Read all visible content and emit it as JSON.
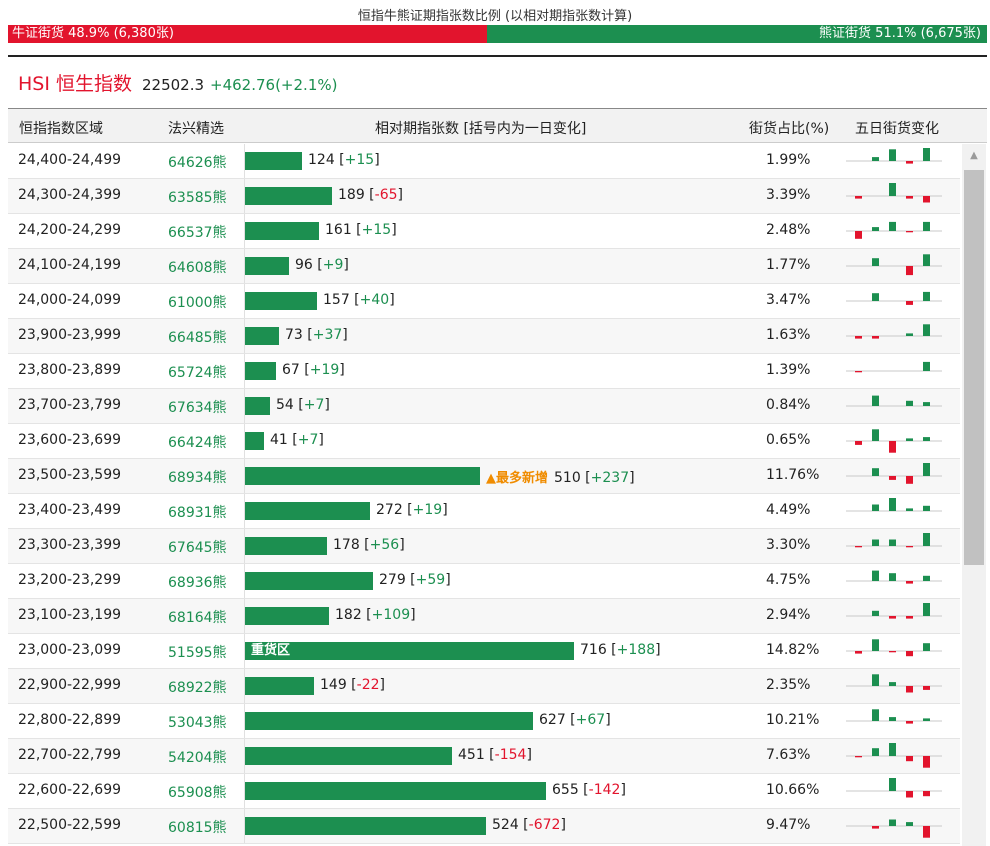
{
  "ratio": {
    "title": "恒指牛熊证期指张数比例 (以相对期指张数计算)",
    "bull_label": "牛证街货 48.9% (6,380张)",
    "bear_label": "熊证街货 51.1% (6,675张)",
    "bull_pct": 48.9,
    "bear_pct": 51.1,
    "bull_color": "#e2142d",
    "bear_color": "#1c8f50"
  },
  "index": {
    "name": "HSI 恒生指数",
    "value": "22502.3",
    "change": "+462.76(+2.1%)"
  },
  "headers": {
    "range": "恒指指数区域",
    "code": "法兴精选",
    "contracts": "相对期指张数 [括号内为一日变化]",
    "share": "街货占比(%)",
    "five_day": "五日街货变化"
  },
  "rows": [
    {
      "range": "24,400-24,499",
      "code": "64626熊",
      "contracts": 124,
      "change": "+15",
      "pct": "1.99%",
      "five": [
        0,
        3,
        9,
        -2,
        10
      ]
    },
    {
      "range": "24,300-24,399",
      "code": "63585熊",
      "contracts": 189,
      "change": "-65",
      "pct": "3.39%",
      "five": [
        -2,
        0,
        10,
        -2,
        -5
      ]
    },
    {
      "range": "24,200-24,299",
      "code": "66537熊",
      "contracts": 161,
      "change": "+15",
      "pct": "2.48%",
      "five": [
        -6,
        3,
        7,
        -1,
        7
      ]
    },
    {
      "range": "24,100-24,199",
      "code": "64608熊",
      "contracts": 96,
      "change": "+9",
      "pct": "1.77%",
      "five": [
        0,
        6,
        0,
        -7,
        9
      ]
    },
    {
      "range": "24,000-24,099",
      "code": "61000熊",
      "contracts": 157,
      "change": "+40",
      "pct": "3.47%",
      "five": [
        0,
        6,
        0,
        -3,
        7
      ]
    },
    {
      "range": "23,900-23,999",
      "code": "66485熊",
      "contracts": 73,
      "change": "+37",
      "pct": "1.63%",
      "five": [
        -2,
        -2,
        0,
        2,
        9
      ]
    },
    {
      "range": "23,800-23,899",
      "code": "65724熊",
      "contracts": 67,
      "change": "+19",
      "pct": "1.39%",
      "five": [
        -1,
        0,
        0,
        0,
        7
      ]
    },
    {
      "range": "23,700-23,799",
      "code": "67634熊",
      "contracts": 54,
      "change": "+7",
      "pct": "0.84%",
      "five": [
        0,
        8,
        0,
        4,
        3
      ]
    },
    {
      "range": "23,600-23,699",
      "code": "66424熊",
      "contracts": 41,
      "change": "+7",
      "pct": "0.65%",
      "five": [
        -3,
        9,
        -9,
        2,
        3
      ]
    },
    {
      "range": "23,500-23,599",
      "code": "68934熊",
      "contracts": 510,
      "change": "+237",
      "pct": "11.76%",
      "five": [
        0,
        6,
        -3,
        -6,
        10
      ],
      "note": "▲最多新增"
    },
    {
      "range": "23,400-23,499",
      "code": "68931熊",
      "contracts": 272,
      "change": "+19",
      "pct": "4.49%",
      "five": [
        0,
        5,
        10,
        2,
        4
      ]
    },
    {
      "range": "23,300-23,399",
      "code": "67645熊",
      "contracts": 178,
      "change": "+56",
      "pct": "3.30%",
      "five": [
        -1,
        5,
        5,
        -1,
        10
      ]
    },
    {
      "range": "23,200-23,299",
      "code": "68936熊",
      "contracts": 279,
      "change": "+59",
      "pct": "4.75%",
      "five": [
        0,
        8,
        6,
        -2,
        4
      ]
    },
    {
      "range": "23,100-23,199",
      "code": "68164熊",
      "contracts": 182,
      "change": "+109",
      "pct": "2.94%",
      "five": [
        0,
        4,
        -2,
        -2,
        10
      ]
    },
    {
      "range": "23,000-23,099",
      "code": "51595熊",
      "contracts": 716,
      "change": "+188",
      "pct": "14.82%",
      "five": [
        -2,
        9,
        -1,
        -4,
        6
      ],
      "note": "重货区"
    },
    {
      "range": "22,900-22,999",
      "code": "68922熊",
      "contracts": 149,
      "change": "-22",
      "pct": "2.35%",
      "five": [
        0,
        9,
        3,
        -5,
        -3
      ]
    },
    {
      "range": "22,800-22,899",
      "code": "53043熊",
      "contracts": 627,
      "change": "+67",
      "pct": "10.21%",
      "five": [
        0,
        9,
        3,
        -2,
        2
      ]
    },
    {
      "range": "22,700-22,799",
      "code": "54204熊",
      "contracts": 451,
      "change": "-154",
      "pct": "7.63%",
      "five": [
        -1,
        6,
        10,
        -4,
        -9
      ]
    },
    {
      "range": "22,600-22,699",
      "code": "65908熊",
      "contracts": 655,
      "change": "-142",
      "pct": "10.66%",
      "five": [
        0,
        0,
        10,
        -5,
        -4
      ]
    },
    {
      "range": "22,500-22,599",
      "code": "60815熊",
      "contracts": 524,
      "change": "-672",
      "pct": "9.47%",
      "five": [
        0,
        -2,
        5,
        3,
        -9
      ]
    }
  ],
  "colors": {
    "up": "#1c8f50",
    "down": "#e2142d",
    "note": "#f08c00"
  },
  "scrollbar": {
    "up_icon": "triangle-up-icon"
  }
}
